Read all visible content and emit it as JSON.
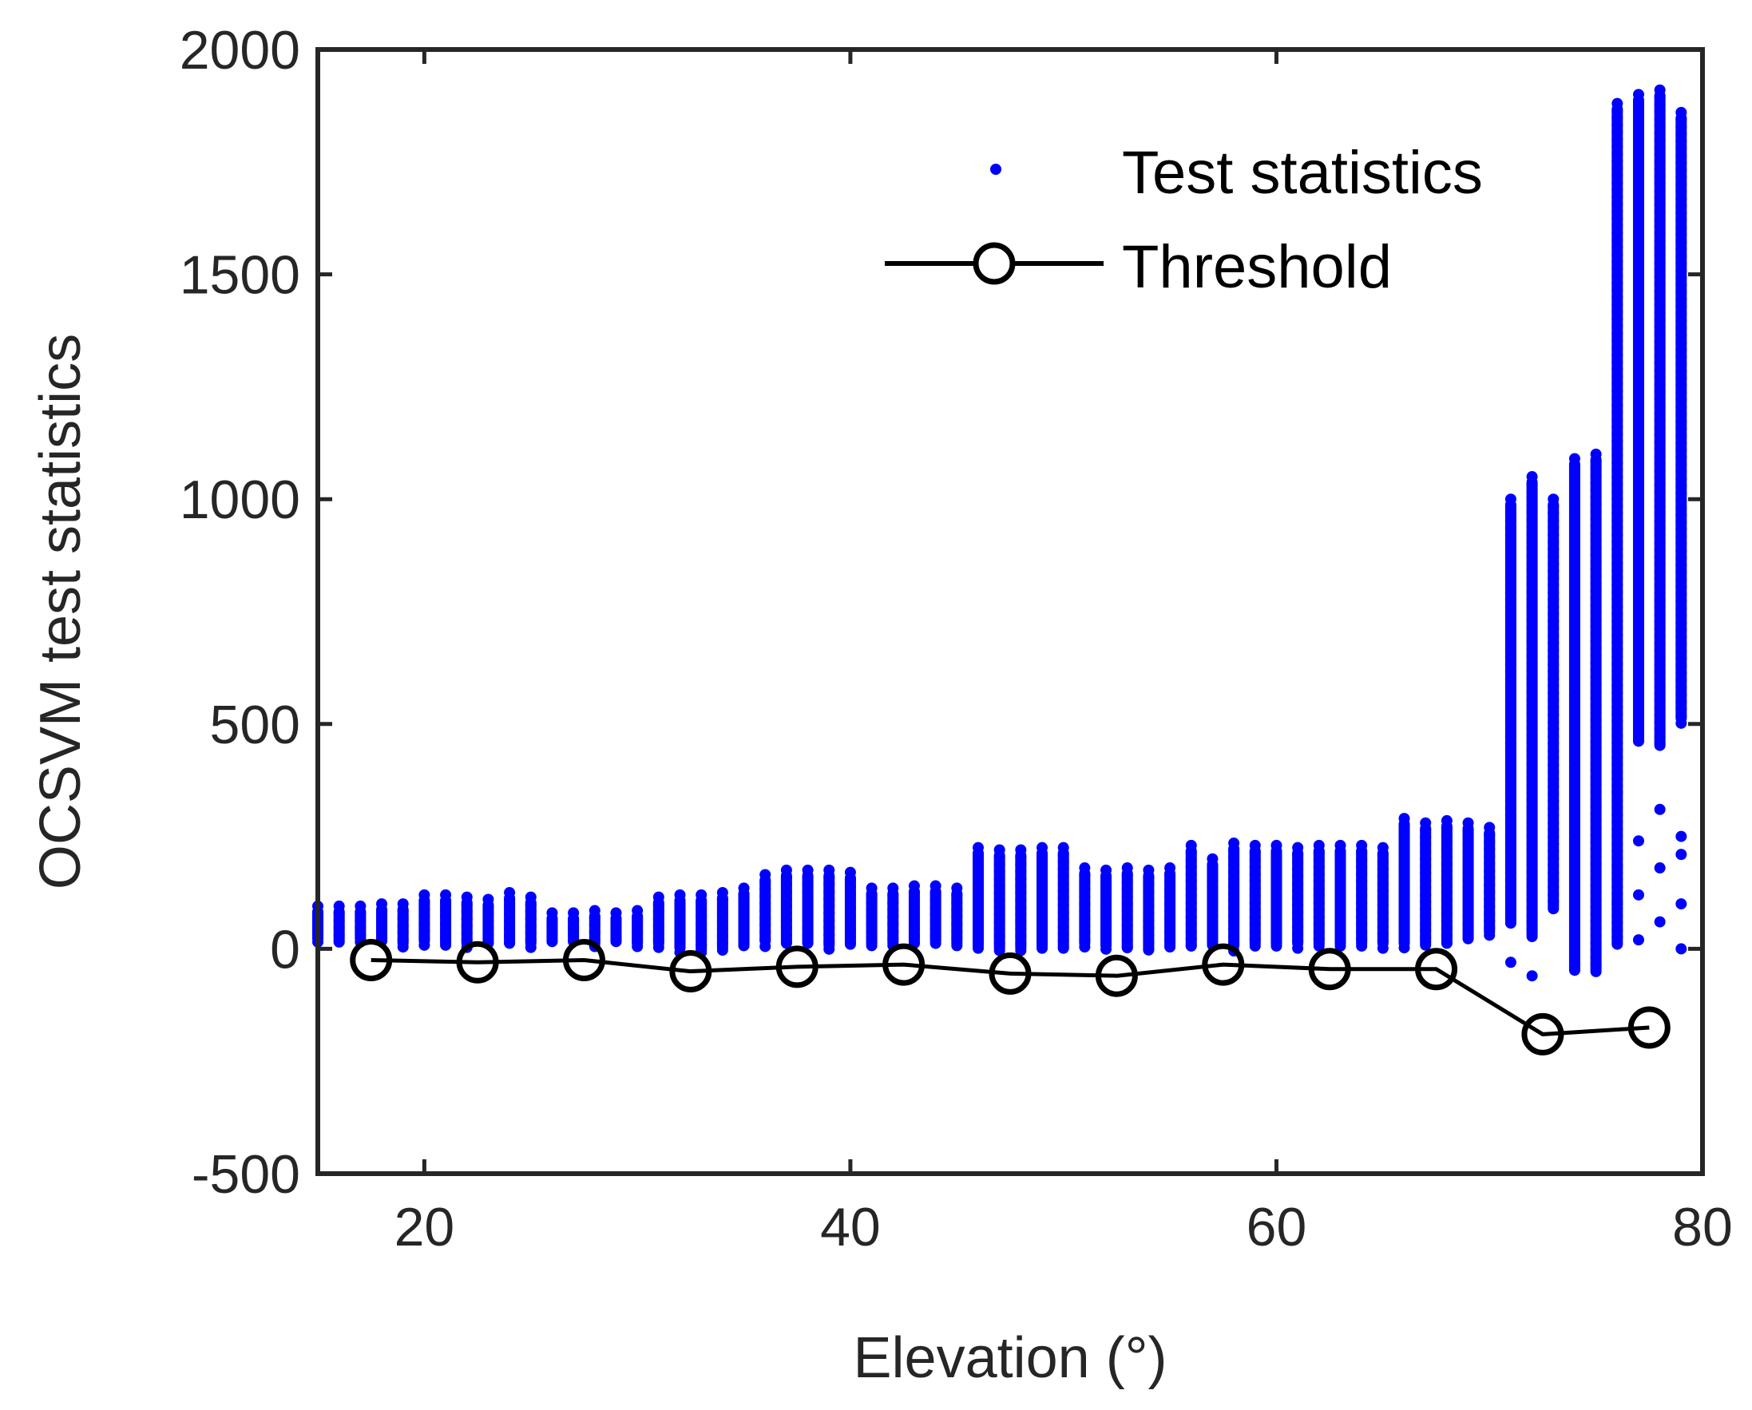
{
  "chart_data": {
    "type": "scatter",
    "title": "",
    "xlabel": "Elevation (°)",
    "ylabel": "OCSVM test statistics",
    "xlim": [
      15,
      80
    ],
    "ylim": [
      -500,
      2000
    ],
    "xticks": [
      20,
      40,
      60,
      80
    ],
    "yticks": [
      -500,
      0,
      500,
      1000,
      1500,
      2000
    ],
    "xtick_labels": [
      "20",
      "40",
      "60",
      "80"
    ],
    "ytick_labels": [
      "-500",
      "0",
      "500",
      "1000",
      "1500",
      "2000"
    ],
    "grid": false,
    "legend_position": "top-right",
    "colors": {
      "test_statistics": "#0000ff",
      "threshold": "#000000",
      "axes": "#262626"
    },
    "series": [
      {
        "name": "Test statistics",
        "kind": "scatter",
        "note": "Each column of points spans the range [min, max] at one elevation bin",
        "columns": [
          {
            "x": 15.0,
            "min": 10,
            "max": 95
          },
          {
            "x": 16.0,
            "min": 5,
            "max": 95
          },
          {
            "x": 17.0,
            "min": 10,
            "max": 95
          },
          {
            "x": 18.0,
            "min": 5,
            "max": 100
          },
          {
            "x": 19.0,
            "min": 0,
            "max": 100
          },
          {
            "x": 20.0,
            "min": 5,
            "max": 120
          },
          {
            "x": 21.0,
            "min": 0,
            "max": 120
          },
          {
            "x": 22.0,
            "min": 0,
            "max": 115
          },
          {
            "x": 23.0,
            "min": 0,
            "max": 110
          },
          {
            "x": 24.0,
            "min": 0,
            "max": 125
          },
          {
            "x": 25.0,
            "min": 0,
            "max": 115
          },
          {
            "x": 26.0,
            "min": 5,
            "max": 80
          },
          {
            "x": 27.0,
            "min": 5,
            "max": 80
          },
          {
            "x": 28.0,
            "min": 0,
            "max": 85
          },
          {
            "x": 29.0,
            "min": 5,
            "max": 80
          },
          {
            "x": 30.0,
            "min": 0,
            "max": 85
          },
          {
            "x": 31.0,
            "min": 0,
            "max": 115
          },
          {
            "x": 32.0,
            "min": -10,
            "max": 120
          },
          {
            "x": 33.0,
            "min": -15,
            "max": 120
          },
          {
            "x": 34.0,
            "min": -10,
            "max": 125
          },
          {
            "x": 35.0,
            "min": -5,
            "max": 135
          },
          {
            "x": 36.0,
            "min": 5,
            "max": 165
          },
          {
            "x": 37.0,
            "min": 0,
            "max": 175
          },
          {
            "x": 38.0,
            "min": 0,
            "max": 175
          },
          {
            "x": 39.0,
            "min": -5,
            "max": 175
          },
          {
            "x": 40.0,
            "min": 0,
            "max": 170
          },
          {
            "x": 41.0,
            "min": 0,
            "max": 135
          },
          {
            "x": 42.0,
            "min": 0,
            "max": 135
          },
          {
            "x": 43.0,
            "min": 0,
            "max": 140
          },
          {
            "x": 44.0,
            "min": 5,
            "max": 140
          },
          {
            "x": 45.0,
            "min": 0,
            "max": 135
          },
          {
            "x": 46.0,
            "min": -5,
            "max": 225
          },
          {
            "x": 47.0,
            "min": -10,
            "max": 220
          },
          {
            "x": 48.0,
            "min": -10,
            "max": 220
          },
          {
            "x": 49.0,
            "min": -5,
            "max": 225
          },
          {
            "x": 50.0,
            "min": -10,
            "max": 225
          },
          {
            "x": 51.0,
            "min": 0,
            "max": 180
          },
          {
            "x": 52.0,
            "min": -5,
            "max": 175
          },
          {
            "x": 53.0,
            "min": -10,
            "max": 180
          },
          {
            "x": 54.0,
            "min": -15,
            "max": 175
          },
          {
            "x": 55.0,
            "min": -5,
            "max": 180
          },
          {
            "x": 56.0,
            "min": -5,
            "max": 230
          },
          {
            "x": 57.0,
            "min": 0,
            "max": 200
          },
          {
            "x": 58.0,
            "min": -5,
            "max": 235
          },
          {
            "x": 59.0,
            "min": 0,
            "max": 230
          },
          {
            "x": 60.0,
            "min": 0,
            "max": 230
          },
          {
            "x": 61.0,
            "min": 0,
            "max": 225
          },
          {
            "x": 62.0,
            "min": 0,
            "max": 230
          },
          {
            "x": 63.0,
            "min": 0,
            "max": 230
          },
          {
            "x": 64.0,
            "min": 0,
            "max": 230
          },
          {
            "x": 65.0,
            "min": 0,
            "max": 225
          },
          {
            "x": 66.0,
            "min": 0,
            "max": 290
          },
          {
            "x": 67.0,
            "min": 0,
            "max": 280
          },
          {
            "x": 68.0,
            "min": 0,
            "max": 285
          },
          {
            "x": 69.0,
            "min": 10,
            "max": 280
          },
          {
            "x": 70.0,
            "min": 25,
            "max": 270
          },
          {
            "x": 71.0,
            "min": 50,
            "max": 1000
          },
          {
            "x": 72.0,
            "min": 20,
            "max": 1050
          },
          {
            "x": 73.0,
            "min": 80,
            "max": 1000
          },
          {
            "x": 74.0,
            "min": -60,
            "max": 1090
          },
          {
            "x": 75.0,
            "min": -60,
            "max": 1100
          },
          {
            "x": 76.0,
            "min": 0,
            "max": 1880
          },
          {
            "x": 77.0,
            "min": 450,
            "max": 1900
          },
          {
            "x": 78.0,
            "min": 440,
            "max": 1910
          },
          {
            "x": 79.0,
            "min": 500,
            "max": 1860
          }
        ],
        "outliers": [
          {
            "x": 71.0,
            "y": -30
          },
          {
            "x": 72.0,
            "y": -60
          },
          {
            "x": 76.0,
            "y": 350
          },
          {
            "x": 76.0,
            "y": 180
          },
          {
            "x": 76.0,
            "y": 100
          },
          {
            "x": 77.0,
            "y": 240
          },
          {
            "x": 77.0,
            "y": 120
          },
          {
            "x": 77.0,
            "y": 20
          },
          {
            "x": 78.0,
            "y": 310
          },
          {
            "x": 78.0,
            "y": 180
          },
          {
            "x": 78.0,
            "y": 60
          },
          {
            "x": 79.0,
            "y": 250
          },
          {
            "x": 79.0,
            "y": 210
          },
          {
            "x": 79.0,
            "y": 100
          },
          {
            "x": 79.0,
            "y": 0
          }
        ]
      },
      {
        "name": "Threshold",
        "kind": "line-with-circle-markers",
        "x": [
          17.5,
          22.5,
          27.5,
          32.5,
          37.5,
          42.5,
          47.5,
          52.5,
          57.5,
          62.5,
          67.5,
          72.5,
          77.5
        ],
        "y": [
          -25,
          -30,
          -25,
          -50,
          -40,
          -35,
          -55,
          -60,
          -35,
          -45,
          -45,
          -190,
          -175
        ]
      }
    ]
  }
}
